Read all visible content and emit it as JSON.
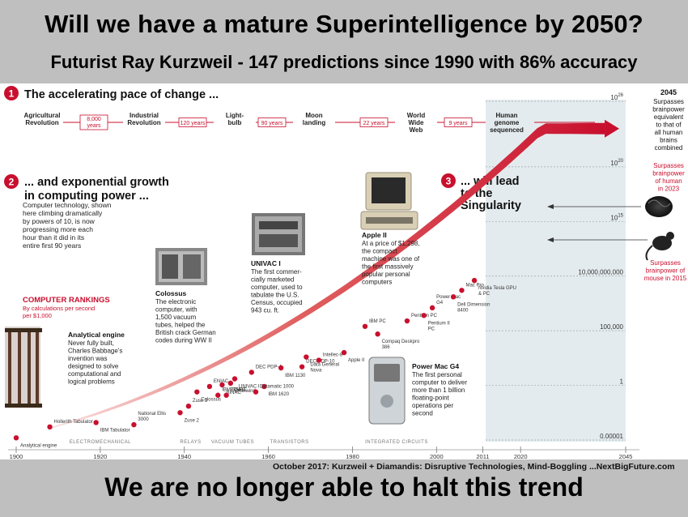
{
  "header": {
    "title": "Will we have a mature Superintelligence by 2050?",
    "subtitle": "Futurist Ray Kurzweil  - 147 predictions since 1990 with 86% accuracy"
  },
  "footer": {
    "tagline": "We are no longer able to  halt this trend",
    "credit": "October 2017: Kurzweil + Diamandis: Disruptive Technologies, Mind-Boggling  ...NextBigFuture.com"
  },
  "colors": {
    "accent": "#c8102e",
    "future_band": "#e4ebee",
    "background": "#bfbfbf"
  },
  "sections": {
    "s1": {
      "num": "1",
      "title": "The accelerating pace of change ..."
    },
    "s2": {
      "num": "2",
      "title1": "... and exponential growth",
      "title2": "in computing power ...",
      "desc": [
        "Computer technology, shown",
        "here climbing dramatically",
        "by powers of 10, is now",
        "progressing more each",
        "hour than it did in its",
        "entire first 90 years"
      ]
    },
    "s3": {
      "num": "3",
      "title1": "... will lead",
      "title2": "to the",
      "title3": "Singularity"
    }
  },
  "timeline": {
    "milestones": [
      {
        "l1": "Agricultural",
        "l2": "Revolution"
      },
      {
        "l1": "Industrial",
        "l2": "Revolution"
      },
      {
        "l1": "Light-",
        "l2": "bulb"
      },
      {
        "l1": "Moon",
        "l2": "landing"
      },
      {
        "l1": "World",
        "l2": "Wide",
        "l3": "Web"
      },
      {
        "l1": "Human",
        "l2": "genome",
        "l3": "sequenced"
      }
    ],
    "gaps": [
      {
        "l1": "8,000",
        "l2": "years"
      },
      {
        "l1": "120 years"
      },
      {
        "l1": "90 years"
      },
      {
        "l1": "22 years"
      },
      {
        "l1": "9 years"
      }
    ]
  },
  "rankings": {
    "title": "COMPUTER RANKINGS",
    "sub1": "By calculations per second",
    "sub2": "per $1,000"
  },
  "callouts": {
    "analytical": {
      "title": "Analytical engine",
      "lines": [
        "Never fully built,",
        "Charles Babbage's",
        "invention was",
        "designed to solve",
        "computational and",
        "logical problems"
      ]
    },
    "colossus": {
      "title": "Colossus",
      "lines": [
        "The electronic",
        "computer, with",
        "1,500 vacuum",
        "tubes, helped the",
        "British crack German",
        "codes during WW II"
      ]
    },
    "univac": {
      "title": "UNIVAC I",
      "lines": [
        "The first commer-",
        "cially marketed",
        "computer, used to",
        "tabulate the U.S.",
        "Census, occupied",
        "943 cu. ft."
      ]
    },
    "apple": {
      "title": "Apple II",
      "lines": [
        "At a price of $1,298,",
        "the compact",
        "machine was one of",
        "the first massively",
        "popular personal",
        "computers"
      ]
    },
    "powermac": {
      "title": "Power Mac G4",
      "lines": [
        "The first personal",
        "computer to deliver",
        "more than 1 billion",
        "floating-point",
        "operations per",
        "second"
      ]
    }
  },
  "right_notes": {
    "n2045": {
      "year": "2045",
      "lines": [
        "Surpasses",
        "brainpower",
        "equivalent",
        "to that of",
        "all human",
        "brains",
        "combined"
      ]
    },
    "human": {
      "lines": [
        "Surpasses",
        "brainpower",
        "of human",
        "in 2023"
      ]
    },
    "mouse": {
      "lines": [
        "Surpasses",
        "brainpower of",
        "mouse in 2015"
      ]
    }
  },
  "chart_data": {
    "type": "scatter",
    "title": "The accelerating pace of change ...",
    "xlim": [
      1900,
      2045
    ],
    "y_scale": "log10",
    "ylim_exponent": [
      -5,
      26
    ],
    "x_ticks": [
      1900,
      1920,
      1940,
      1960,
      1980,
      2000,
      2011,
      2020,
      2045
    ],
    "y_tick_labels": [
      {
        "exp": 26,
        "base": "10",
        "sup": "26"
      },
      {
        "exp": 20,
        "base": "10",
        "sup": "20"
      },
      {
        "exp": 15,
        "base": "10",
        "sup": "15"
      },
      {
        "exp": 10,
        "label": "10,000,000,000"
      },
      {
        "exp": 5,
        "label": "100,000"
      },
      {
        "exp": 0,
        "label": "1"
      },
      {
        "exp": -5,
        "label": "0.00001"
      }
    ],
    "eras": [
      {
        "label": "ELECTROMECHANICAL",
        "from": 1900,
        "to": 1940
      },
      {
        "label": "RELAYS",
        "from": 1940,
        "to": 1943
      },
      {
        "label": "VACUUM TUBES",
        "from": 1943,
        "to": 1960
      },
      {
        "label": "TRANSISTORS",
        "from": 1960,
        "to": 1970
      },
      {
        "label": "INTEGRATED CIRCUITS",
        "from": 1970,
        "to": 2011
      }
    ],
    "points": [
      {
        "label": "Analytical engine",
        "year": 1900,
        "exp": -4.8
      },
      {
        "label": "Hollerith Tabulator",
        "year": 1908,
        "exp": -3.8
      },
      {
        "label": "IBM Tabulator",
        "year": 1919,
        "exp": -3.4
      },
      {
        "label": "National Ellis 3000",
        "year": 1928,
        "exp": -3.6
      },
      {
        "label": "Zuse 2",
        "year": 1939,
        "exp": -2.5
      },
      {
        "label": "Zuse 3",
        "year": 1941,
        "exp": -1.9
      },
      {
        "label": "Colossus",
        "year": 1943,
        "exp": -0.6
      },
      {
        "label": "ENIAC",
        "year": 1946,
        "exp": -0.1
      },
      {
        "label": "BINAC",
        "year": 1949,
        "exp": 0.05
      },
      {
        "label": "IBM SSEC",
        "year": 1948,
        "exp": -0.9
      },
      {
        "label": "Whirlwind",
        "year": 1951,
        "exp": 0.2
      },
      {
        "label": "EDVAC",
        "year": 1950,
        "exp": -0.9
      },
      {
        "label": "UNIVAC I",
        "year": 1952,
        "exp": 0.6
      },
      {
        "label": "DEC PDP-4",
        "year": 1956,
        "exp": 1.2
      },
      {
        "label": "IBM 1620",
        "year": 1959,
        "exp": -0.1
      },
      {
        "label": "Datamatic 1000",
        "year": 1957,
        "exp": -0.6
      },
      {
        "label": "IBM 1130",
        "year": 1963,
        "exp": 1.6
      },
      {
        "label": "DEC PDP-10",
        "year": 1968,
        "exp": 1.7
      },
      {
        "label": "Data General Nova",
        "year": 1969,
        "exp": 2.6
      },
      {
        "label": "Intellec-8",
        "year": 1972,
        "exp": 2.3
      },
      {
        "label": "Compaq Deskpro 386",
        "year": 1986,
        "exp": 4.7
      },
      {
        "label": "IBM PC",
        "year": 1983,
        "exp": 5.4
      },
      {
        "label": "Apple II",
        "year": 1978,
        "exp": 3.0
      },
      {
        "label": "Pentium PC",
        "year": 1993,
        "exp": 5.9
      },
      {
        "label": "Pentium II PC",
        "year": 1997,
        "exp": 6.4
      },
      {
        "label": "Power Mac G4",
        "year": 1999,
        "exp": 7.1
      },
      {
        "label": "Dell Dimension 8400",
        "year": 2004,
        "exp": 8.1
      },
      {
        "label": "Mac Pro",
        "year": 2006,
        "exp": 8.7
      },
      {
        "label": "Nvidia Tesla GPU & PC",
        "year": 2009,
        "exp": 9.6
      }
    ]
  }
}
